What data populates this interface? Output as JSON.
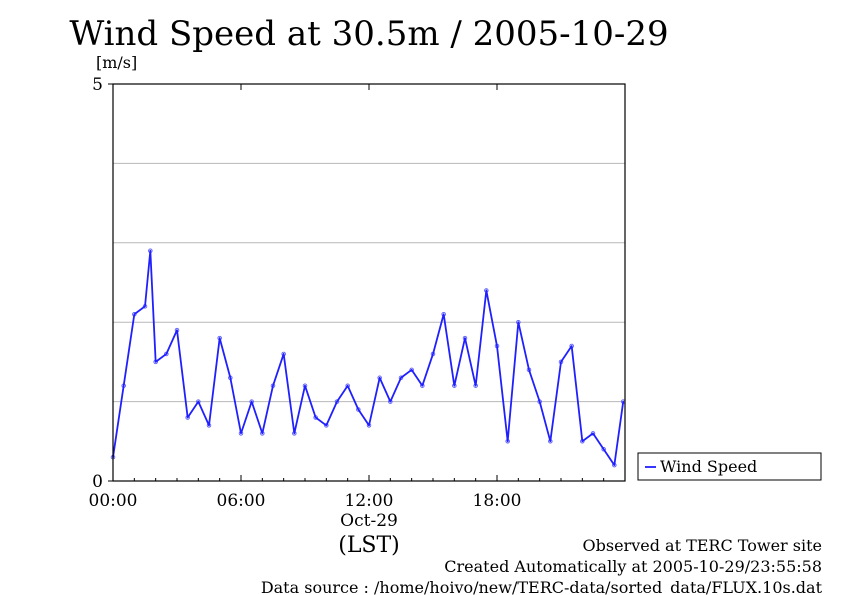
{
  "chart_data": {
    "type": "scatter",
    "title": "Wind Speed at 30.5m / 2005-10-29",
    "ylabel": "[m/s]",
    "xlabel": "(LST)",
    "date_label": "Oct-29",
    "ylim": [
      0,
      5
    ],
    "xlim": [
      "00:00",
      "24:00"
    ],
    "x_ticks": [
      "00:00",
      "06:00",
      "12:00",
      "18:00"
    ],
    "y_ticks": [
      {
        "value": 0,
        "label": "0"
      },
      {
        "value": 5,
        "label": "5"
      }
    ],
    "grid": true,
    "grid_y": [
      1,
      2,
      3,
      4
    ],
    "legend": {
      "position": "right",
      "entries": [
        "Wind Speed"
      ]
    },
    "colors": {
      "series": "#2020ff",
      "points": "#5b5bff",
      "grid": "#b8b8b8"
    },
    "series": [
      {
        "name": "Wind Speed",
        "style": "line-with-scatter-points",
        "x": [
          "00:00",
          "00:30",
          "01:00",
          "01:30",
          "01:45",
          "02:00",
          "02:30",
          "03:00",
          "03:30",
          "04:00",
          "04:30",
          "05:00",
          "05:30",
          "06:00",
          "06:30",
          "07:00",
          "07:30",
          "08:00",
          "08:30",
          "09:00",
          "09:30",
          "10:00",
          "10:30",
          "11:00",
          "11:30",
          "12:00",
          "12:30",
          "13:00",
          "13:30",
          "14:00",
          "14:30",
          "15:00",
          "15:30",
          "16:00",
          "16:30",
          "17:00",
          "17:30",
          "18:00",
          "18:30",
          "19:00",
          "19:30",
          "20:00",
          "20:30",
          "21:00",
          "21:30",
          "22:00",
          "22:30",
          "23:00",
          "23:30",
          "23:55"
        ],
        "values": [
          0.3,
          1.2,
          2.1,
          2.2,
          2.9,
          1.5,
          1.6,
          1.9,
          0.8,
          1.0,
          0.7,
          1.8,
          1.3,
          0.6,
          1.0,
          0.6,
          1.2,
          1.6,
          0.6,
          1.2,
          0.8,
          0.7,
          1.0,
          1.2,
          0.9,
          0.7,
          1.3,
          1.0,
          1.3,
          1.4,
          1.2,
          1.6,
          2.1,
          1.2,
          1.8,
          1.2,
          2.4,
          1.7,
          0.5,
          2.0,
          1.4,
          1.0,
          0.5,
          1.5,
          1.7,
          0.5,
          0.6,
          0.4,
          0.2,
          1.0
        ]
      }
    ]
  },
  "footer": {
    "observed": "Observed at TERC Tower site",
    "created": "Created Automatically at 2005-10-29/23:55:58",
    "source": "Data source : /home/hoivo/new/TERC-data/sorted_data/FLUX.10s.dat"
  }
}
